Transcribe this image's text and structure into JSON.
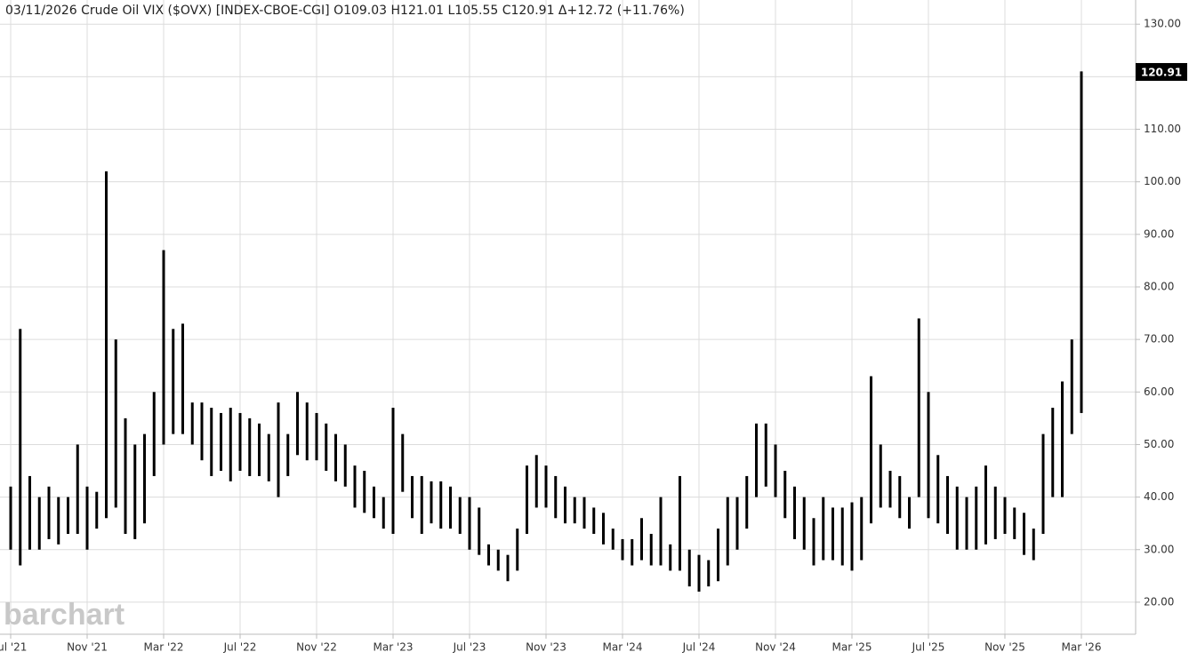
{
  "chart_data": {
    "type": "range",
    "title": "03/11/2026 Crude Oil VIX ($OVX) [INDEX-CBOE-CGI] O109.03 H121.01 L105.55 C120.91 Δ+12.72 (+11.76%)",
    "watermark": "barchart",
    "color": "#000000",
    "grid": true,
    "categories": [
      "Jul '21",
      null,
      null,
      null,
      null,
      null,
      null,
      null,
      "Nov '21",
      null,
      null,
      null,
      null,
      null,
      null,
      null,
      "Mar '22",
      null,
      null,
      null,
      null,
      null,
      null,
      null,
      "Jul '22",
      null,
      null,
      null,
      null,
      null,
      null,
      null,
      "Nov '22",
      null,
      null,
      null,
      null,
      null,
      null,
      null,
      "Mar '23",
      null,
      null,
      null,
      null,
      null,
      null,
      null,
      "Jul '23",
      null,
      null,
      null,
      null,
      null,
      null,
      null,
      "Nov '23",
      null,
      null,
      null,
      null,
      null,
      null,
      null,
      "Mar '24",
      null,
      null,
      null,
      null,
      null,
      null,
      null,
      "Jul '24",
      null,
      null,
      null,
      null,
      null,
      null,
      null,
      "Nov '24",
      null,
      null,
      null,
      null,
      null,
      null,
      null,
      "Mar '25",
      null,
      null,
      null,
      null,
      null,
      null,
      null,
      "Jul '25",
      null,
      null,
      null,
      null,
      null,
      null,
      null,
      "Nov '25",
      null,
      null,
      null,
      null,
      null,
      null,
      null,
      "Mar '26"
    ],
    "high": [
      42,
      72,
      44,
      40,
      42,
      40,
      40,
      50,
      42,
      41,
      102,
      70,
      55,
      50,
      52,
      60,
      87,
      72,
      73,
      58,
      58,
      57,
      56,
      57,
      56,
      55,
      54,
      52,
      58,
      52,
      60,
      58,
      56,
      54,
      52,
      50,
      46,
      45,
      42,
      40,
      57,
      52,
      44,
      44,
      43,
      43,
      42,
      40,
      40,
      38,
      31,
      30,
      29,
      34,
      46,
      48,
      46,
      44,
      42,
      40,
      40,
      38,
      37,
      34,
      32,
      32,
      36,
      33,
      40,
      31,
      44,
      30,
      29,
      28,
      34,
      40,
      40,
      44,
      54,
      54,
      50,
      45,
      42,
      40,
      36,
      40,
      38,
      38,
      39,
      40,
      63,
      50,
      45,
      44,
      40,
      74,
      60,
      48,
      44,
      42,
      40,
      42,
      46,
      42,
      40,
      38,
      37,
      34,
      52,
      57,
      62,
      70,
      121.01
    ],
    "low": [
      30,
      27,
      30,
      30,
      32,
      31,
      33,
      33,
      30,
      34,
      36,
      38,
      33,
      32,
      35,
      44,
      50,
      52,
      52,
      50,
      47,
      44,
      45,
      43,
      45,
      44,
      44,
      43,
      40,
      44,
      48,
      47,
      47,
      45,
      43,
      42,
      38,
      37,
      36,
      34,
      33,
      41,
      36,
      33,
      35,
      34,
      34,
      33,
      30,
      29,
      27,
      26,
      24,
      26,
      33,
      38,
      38,
      36,
      35,
      35,
      34,
      33,
      31,
      30,
      28,
      27,
      28,
      27,
      27,
      26,
      26,
      23,
      22,
      23,
      24,
      27,
      30,
      34,
      40,
      42,
      40,
      36,
      32,
      30,
      27,
      28,
      28,
      27,
      26,
      28,
      35,
      38,
      38,
      36,
      34,
      40,
      36,
      35,
      33,
      30,
      30,
      30,
      31,
      32,
      33,
      32,
      29,
      28,
      33,
      40,
      40,
      52,
      56
    ],
    "last": 120.91,
    "ylim": [
      13.9,
      134.6
    ],
    "yticks": [
      {
        "value": 20,
        "label": "20.00"
      },
      {
        "value": 30,
        "label": "30.00"
      },
      {
        "value": 40,
        "label": "40.00"
      },
      {
        "value": 50,
        "label": "50.00"
      },
      {
        "value": 60,
        "label": "60.00"
      },
      {
        "value": 70,
        "label": "70.00"
      },
      {
        "value": 80,
        "label": "80.00"
      },
      {
        "value": 90,
        "label": "90.00"
      },
      {
        "value": 100,
        "label": "100.00"
      },
      {
        "value": 110,
        "label": "110.00"
      },
      {
        "value": 120,
        "label": "120.00"
      },
      {
        "value": 130,
        "label": "130.00"
      }
    ]
  }
}
